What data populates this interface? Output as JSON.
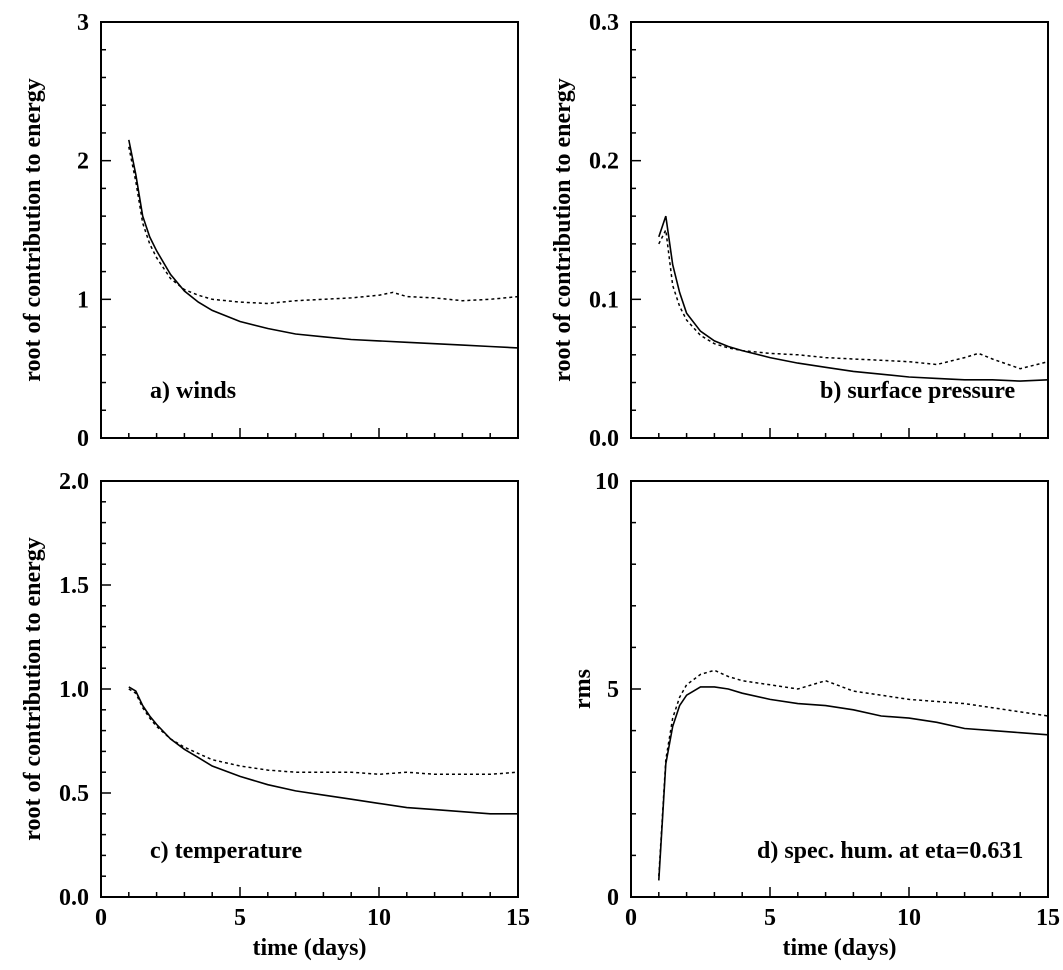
{
  "chart_data": [
    {
      "type": "line",
      "panel_label": "a) winds",
      "xlabel": "",
      "ylabel": "root of contribution to energy",
      "xlim": [
        0,
        15
      ],
      "ylim": [
        0,
        3
      ],
      "xticks": [
        0,
        5,
        10,
        15
      ],
      "xtick_labels": [
        "",
        "",
        "",
        ""
      ],
      "yticks": [
        0,
        1,
        2,
        3
      ],
      "ytick_labels": [
        "0",
        "1",
        "2",
        "3"
      ],
      "grid": false,
      "series": [
        {
          "style": "solid",
          "x": [
            1.0,
            1.25,
            1.5,
            1.75,
            2.0,
            2.5,
            3.0,
            3.5,
            4.0,
            5.0,
            6.0,
            7.0,
            8.0,
            9.0,
            10.0,
            11.0,
            12.0,
            13.0,
            14.0,
            15.0
          ],
          "y": [
            2.15,
            1.9,
            1.6,
            1.45,
            1.35,
            1.18,
            1.06,
            0.98,
            0.92,
            0.84,
            0.79,
            0.75,
            0.73,
            0.71,
            0.7,
            0.69,
            0.68,
            0.67,
            0.66,
            0.65
          ]
        },
        {
          "style": "dotted",
          "x": [
            1.0,
            1.25,
            1.5,
            1.75,
            2.0,
            2.5,
            3.0,
            3.5,
            4.0,
            5.0,
            6.0,
            7.0,
            8.0,
            9.0,
            10.0,
            10.5,
            11.0,
            12.0,
            13.0,
            14.0,
            15.0
          ],
          "y": [
            2.1,
            1.85,
            1.55,
            1.4,
            1.3,
            1.15,
            1.07,
            1.03,
            1.0,
            0.98,
            0.97,
            0.99,
            1.0,
            1.01,
            1.03,
            1.05,
            1.02,
            1.01,
            0.99,
            1.0,
            1.02
          ]
        }
      ]
    },
    {
      "type": "line",
      "panel_label": "b) surface pressure",
      "xlabel": "",
      "ylabel": "root of contribution to energy",
      "xlim": [
        0,
        15
      ],
      "ylim": [
        0,
        0.3
      ],
      "xticks": [
        0,
        5,
        10,
        15
      ],
      "xtick_labels": [
        "",
        "",
        "",
        ""
      ],
      "yticks": [
        0,
        0.1,
        0.2,
        0.3
      ],
      "ytick_labels": [
        "0.0",
        "0.1",
        "0.2",
        "0.3"
      ],
      "grid": false,
      "series": [
        {
          "style": "solid",
          "x": [
            1.0,
            1.25,
            1.5,
            1.75,
            2.0,
            2.5,
            3.0,
            3.5,
            4.0,
            5.0,
            6.0,
            7.0,
            8.0,
            9.0,
            10.0,
            11.0,
            12.0,
            13.0,
            14.0,
            15.0
          ],
          "y": [
            0.145,
            0.16,
            0.125,
            0.105,
            0.09,
            0.077,
            0.07,
            0.066,
            0.063,
            0.058,
            0.054,
            0.051,
            0.048,
            0.046,
            0.044,
            0.043,
            0.042,
            0.042,
            0.041,
            0.042
          ]
        },
        {
          "style": "dotted",
          "x": [
            1.0,
            1.25,
            1.5,
            1.75,
            2.0,
            2.5,
            3.0,
            3.5,
            4.0,
            5.0,
            6.0,
            7.0,
            8.0,
            9.0,
            10.0,
            11.0,
            12.0,
            12.5,
            13.0,
            14.0,
            15.0
          ],
          "y": [
            0.14,
            0.15,
            0.11,
            0.095,
            0.085,
            0.074,
            0.068,
            0.065,
            0.063,
            0.061,
            0.06,
            0.058,
            0.057,
            0.056,
            0.055,
            0.053,
            0.058,
            0.061,
            0.057,
            0.05,
            0.055
          ]
        }
      ]
    },
    {
      "type": "line",
      "panel_label": "c) temperature",
      "xlabel": "time (days)",
      "ylabel": "root of contribution to energy",
      "xlim": [
        0,
        15
      ],
      "ylim": [
        0,
        2
      ],
      "xticks": [
        0,
        5,
        10,
        15
      ],
      "xtick_labels": [
        "0",
        "5",
        "10",
        "15"
      ],
      "yticks": [
        0,
        0.5,
        1.0,
        1.5,
        2.0
      ],
      "ytick_labels": [
        "0.0",
        "0.5",
        "1.0",
        "1.5",
        "2.0"
      ],
      "grid": false,
      "series": [
        {
          "style": "solid",
          "x": [
            1.0,
            1.25,
            1.5,
            1.75,
            2.0,
            2.5,
            3.0,
            3.5,
            4.0,
            5.0,
            6.0,
            7.0,
            8.0,
            9.0,
            10.0,
            11.0,
            12.0,
            13.0,
            14.0,
            15.0
          ],
          "y": [
            1.01,
            0.99,
            0.92,
            0.87,
            0.83,
            0.76,
            0.71,
            0.67,
            0.63,
            0.58,
            0.54,
            0.51,
            0.49,
            0.47,
            0.45,
            0.43,
            0.42,
            0.41,
            0.4,
            0.4
          ]
        },
        {
          "style": "dotted",
          "x": [
            1.0,
            1.25,
            1.5,
            1.75,
            2.0,
            2.5,
            3.0,
            3.5,
            4.0,
            5.0,
            6.0,
            7.0,
            8.0,
            9.0,
            10.0,
            11.0,
            12.0,
            13.0,
            14.0,
            15.0
          ],
          "y": [
            1.0,
            0.98,
            0.91,
            0.86,
            0.82,
            0.76,
            0.72,
            0.69,
            0.66,
            0.63,
            0.61,
            0.6,
            0.6,
            0.6,
            0.59,
            0.6,
            0.59,
            0.59,
            0.59,
            0.6
          ]
        }
      ]
    },
    {
      "type": "line",
      "panel_label": "d) spec. hum. at eta=0.631",
      "xlabel": "time (days)",
      "ylabel": "rms",
      "xlim": [
        0,
        15
      ],
      "ylim": [
        0,
        10
      ],
      "xticks": [
        0,
        5,
        10,
        15
      ],
      "xtick_labels": [
        "0",
        "5",
        "10",
        "15"
      ],
      "yticks": [
        0,
        5,
        10
      ],
      "ytick_labels": [
        "0",
        "5",
        "10"
      ],
      "grid": false,
      "series": [
        {
          "style": "solid",
          "x": [
            1.0,
            1.25,
            1.5,
            1.75,
            2.0,
            2.5,
            3.0,
            3.5,
            4.0,
            5.0,
            6.0,
            7.0,
            8.0,
            9.0,
            10.0,
            11.0,
            12.0,
            13.0,
            14.0,
            15.0
          ],
          "y": [
            0.4,
            3.2,
            4.1,
            4.6,
            4.85,
            5.05,
            5.05,
            5.0,
            4.9,
            4.75,
            4.65,
            4.6,
            4.5,
            4.35,
            4.3,
            4.2,
            4.05,
            4.0,
            3.95,
            3.9
          ]
        },
        {
          "style": "dotted",
          "x": [
            1.0,
            1.25,
            1.5,
            1.75,
            2.0,
            2.5,
            3.0,
            3.5,
            4.0,
            5.0,
            6.0,
            7.0,
            8.0,
            9.0,
            10.0,
            11.0,
            12.0,
            13.0,
            14.0,
            15.0
          ],
          "y": [
            0.5,
            3.3,
            4.3,
            4.8,
            5.1,
            5.35,
            5.45,
            5.3,
            5.2,
            5.1,
            5.0,
            5.2,
            4.95,
            4.85,
            4.75,
            4.7,
            4.65,
            4.55,
            4.45,
            4.35
          ]
        }
      ]
    }
  ]
}
